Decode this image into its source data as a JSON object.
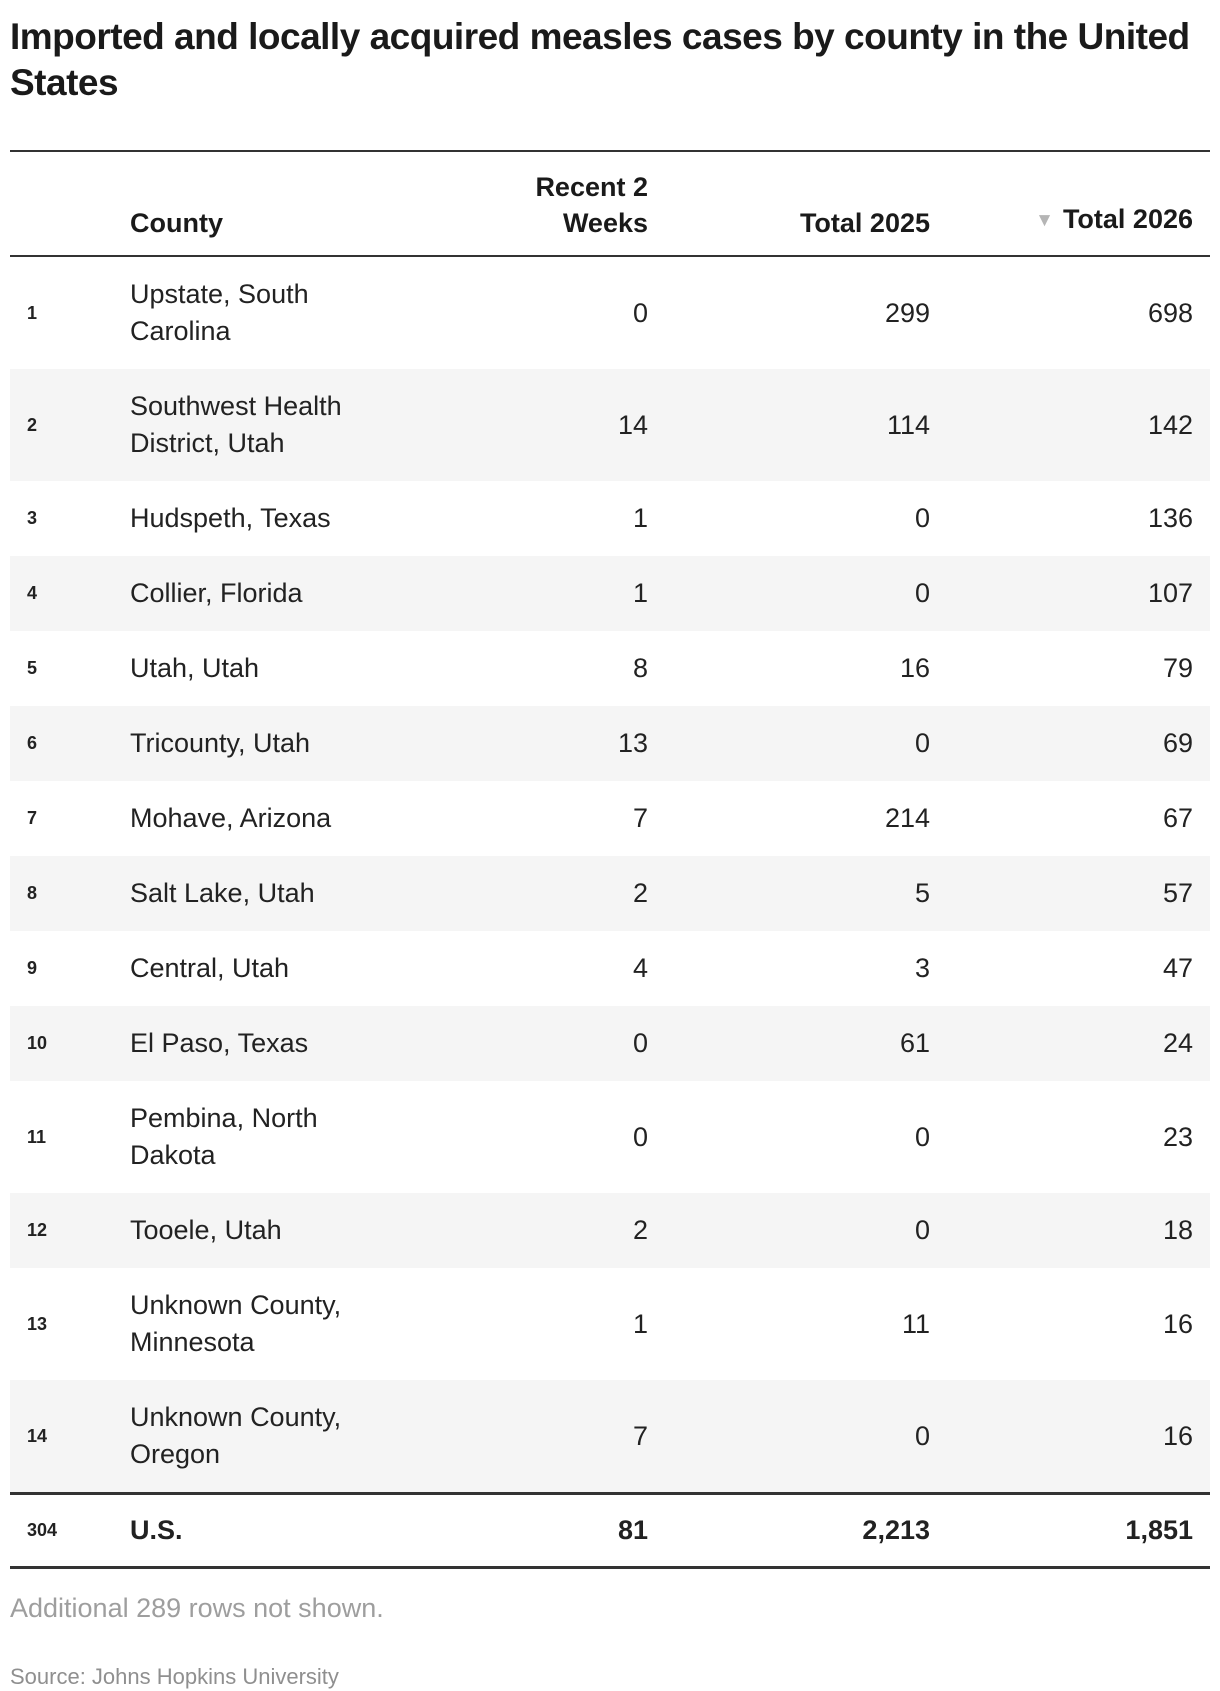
{
  "title": "Imported and locally acquired measles cases by county in the United States",
  "table": {
    "headers": {
      "index": "",
      "county": "County",
      "recent": "Recent 2 Weeks",
      "total2025": "Total 2025",
      "total2026": "Total 2026"
    },
    "sort_icon": "▼",
    "rows": [
      {
        "n": "1",
        "county": "Upstate, South Carolina",
        "recent": "0",
        "t2025": "299",
        "t2026": "698"
      },
      {
        "n": "2",
        "county": "Southwest Health District, Utah",
        "recent": "14",
        "t2025": "114",
        "t2026": "142"
      },
      {
        "n": "3",
        "county": "Hudspeth, Texas",
        "recent": "1",
        "t2025": "0",
        "t2026": "136"
      },
      {
        "n": "4",
        "county": "Collier, Florida",
        "recent": "1",
        "t2025": "0",
        "t2026": "107"
      },
      {
        "n": "5",
        "county": "Utah, Utah",
        "recent": "8",
        "t2025": "16",
        "t2026": "79"
      },
      {
        "n": "6",
        "county": "Tricounty, Utah",
        "recent": "13",
        "t2025": "0",
        "t2026": "69"
      },
      {
        "n": "7",
        "county": "Mohave, Arizona",
        "recent": "7",
        "t2025": "214",
        "t2026": "67"
      },
      {
        "n": "8",
        "county": "Salt Lake, Utah",
        "recent": "2",
        "t2025": "5",
        "t2026": "57"
      },
      {
        "n": "9",
        "county": "Central, Utah",
        "recent": "4",
        "t2025": "3",
        "t2026": "47"
      },
      {
        "n": "10",
        "county": "El Paso, Texas",
        "recent": "0",
        "t2025": "61",
        "t2026": "24"
      },
      {
        "n": "11",
        "county": "Pembina, North Dakota",
        "recent": "0",
        "t2025": "0",
        "t2026": "23"
      },
      {
        "n": "12",
        "county": "Tooele, Utah",
        "recent": "2",
        "t2025": "0",
        "t2026": "18"
      },
      {
        "n": "13",
        "county": "Unknown County, Minnesota",
        "recent": "1",
        "t2025": "11",
        "t2026": "16"
      },
      {
        "n": "14",
        "county": "Unknown County, Oregon",
        "recent": "7",
        "t2025": "0",
        "t2026": "16"
      }
    ],
    "total_row": {
      "n": "304",
      "county": "U.S.",
      "recent": "81",
      "t2025": "2,213",
      "t2026": "1,851"
    }
  },
  "footer": {
    "note": "Additional 289 rows not shown.",
    "source": "Source: Johns Hopkins University"
  },
  "colors": {
    "title_text": "#1a1a1a",
    "body_text": "#222222",
    "row_stripe": "#f5f5f5",
    "rule": "#333333",
    "sort_arrow": "#b5b5b5",
    "note_text": "#9e9e9e",
    "source_text": "#8f8f8f"
  },
  "chart_data": {
    "type": "table",
    "title": "Imported and locally acquired measles cases by county in the United States",
    "columns": [
      "County",
      "Recent 2 Weeks",
      "Total 2025",
      "Total 2026"
    ],
    "sorted_by": "Total 2026 descending",
    "rows": [
      [
        "Upstate, South Carolina",
        0,
        299,
        698
      ],
      [
        "Southwest Health District, Utah",
        14,
        114,
        142
      ],
      [
        "Hudspeth, Texas",
        1,
        0,
        136
      ],
      [
        "Collier, Florida",
        1,
        0,
        107
      ],
      [
        "Utah, Utah",
        8,
        16,
        79
      ],
      [
        "Tricounty, Utah",
        13,
        0,
        69
      ],
      [
        "Mohave, Arizona",
        7,
        214,
        67
      ],
      [
        "Salt Lake, Utah",
        2,
        5,
        57
      ],
      [
        "Central, Utah",
        4,
        3,
        47
      ],
      [
        "El Paso, Texas",
        0,
        61,
        24
      ],
      [
        "Pembina, North Dakota",
        0,
        0,
        23
      ],
      [
        "Tooele, Utah",
        2,
        0,
        18
      ],
      [
        "Unknown County, Minnesota",
        1,
        11,
        16
      ],
      [
        "Unknown County, Oregon",
        7,
        0,
        16
      ]
    ],
    "total_row": {
      "label": "U.S.",
      "row_index": 304,
      "values": [
        81,
        2213,
        1851
      ]
    },
    "note": "Additional 289 rows not shown.",
    "source": "Source: Johns Hopkins University"
  }
}
